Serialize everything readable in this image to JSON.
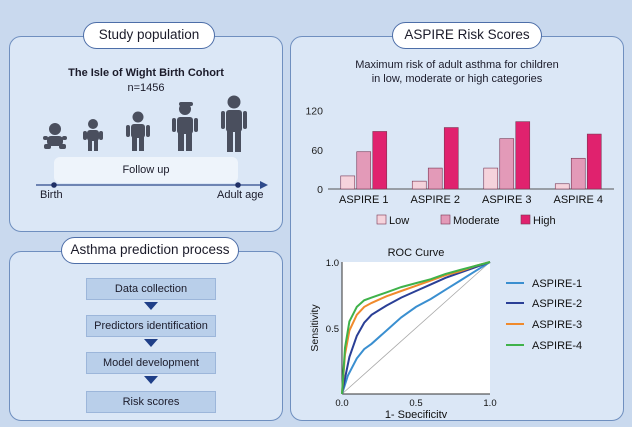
{
  "study": {
    "header": "Study population",
    "cohort": "The Isle of Wight Birth Cohort",
    "n": "n=1456",
    "follow_up": "Follow up",
    "birth": "Birth",
    "adult": "Adult age"
  },
  "process": {
    "header": "Asthma prediction process",
    "steps": [
      "Data collection",
      "Predictors identification",
      "Model development",
      "Risk scores"
    ]
  },
  "aspire": {
    "header": "ASPIRE Risk Scores",
    "subtitle_line1": "Maximum risk of adult asthma for children",
    "subtitle_line2": "in low, moderate or high categories"
  },
  "colors": {
    "low": "#f5d3dc",
    "moderate": "#e39ab8",
    "high": "#e0226e",
    "aspire1": "#3a8fd0",
    "aspire2": "#2a3f96",
    "aspire3": "#f08a2c",
    "aspire4": "#3fb24a"
  },
  "chart_data": [
    {
      "type": "bar",
      "categories": [
        "ASPIRE 1",
        "ASPIRE 2",
        "ASPIRE 3",
        "ASPIRE 4"
      ],
      "series": [
        {
          "name": "Low",
          "values": [
            20,
            12,
            32,
            8
          ]
        },
        {
          "name": "Moderate",
          "values": [
            57,
            32,
            77,
            47
          ]
        },
        {
          "name": "High",
          "values": [
            88,
            94,
            103,
            84
          ]
        }
      ],
      "yticks": [
        "0",
        "60",
        "120"
      ],
      "ylim": [
        0,
        130
      ]
    },
    {
      "type": "line",
      "title": "ROC Curve",
      "xlabel": "1- Specificity",
      "ylabel": "Sensitivity",
      "xticks": [
        "0.0",
        "0.5",
        "1.0"
      ],
      "yticks": [
        "0.5",
        "1.0"
      ],
      "series": [
        {
          "name": "ASPIRE-1",
          "points": [
            [
              0,
              0
            ],
            [
              0.04,
              0.14
            ],
            [
              0.1,
              0.27
            ],
            [
              0.15,
              0.34
            ],
            [
              0.2,
              0.38
            ],
            [
              0.3,
              0.48
            ],
            [
              0.4,
              0.58
            ],
            [
              0.5,
              0.66
            ],
            [
              0.6,
              0.72
            ],
            [
              0.7,
              0.79
            ],
            [
              0.8,
              0.86
            ],
            [
              0.9,
              0.93
            ],
            [
              1,
              1
            ]
          ]
        },
        {
          "name": "ASPIRE-2",
          "points": [
            [
              0,
              0
            ],
            [
              0.02,
              0.12
            ],
            [
              0.05,
              0.28
            ],
            [
              0.1,
              0.44
            ],
            [
              0.15,
              0.54
            ],
            [
              0.2,
              0.6
            ],
            [
              0.3,
              0.67
            ],
            [
              0.4,
              0.73
            ],
            [
              0.5,
              0.78
            ],
            [
              0.6,
              0.83
            ],
            [
              0.7,
              0.88
            ],
            [
              0.8,
              0.92
            ],
            [
              0.9,
              0.96
            ],
            [
              1,
              1
            ]
          ]
        },
        {
          "name": "ASPIRE-3",
          "points": [
            [
              0,
              0
            ],
            [
              0.02,
              0.3
            ],
            [
              0.05,
              0.48
            ],
            [
              0.1,
              0.6
            ],
            [
              0.15,
              0.66
            ],
            [
              0.2,
              0.69
            ],
            [
              0.3,
              0.74
            ],
            [
              0.4,
              0.78
            ],
            [
              0.5,
              0.82
            ],
            [
              0.6,
              0.86
            ],
            [
              0.7,
              0.9
            ],
            [
              0.8,
              0.93
            ],
            [
              0.9,
              0.97
            ],
            [
              1,
              1
            ]
          ]
        },
        {
          "name": "ASPIRE-4",
          "points": [
            [
              0,
              0
            ],
            [
              0.02,
              0.35
            ],
            [
              0.05,
              0.55
            ],
            [
              0.1,
              0.66
            ],
            [
              0.15,
              0.71
            ],
            [
              0.2,
              0.73
            ],
            [
              0.3,
              0.77
            ],
            [
              0.4,
              0.81
            ],
            [
              0.5,
              0.84
            ],
            [
              0.6,
              0.87
            ],
            [
              0.7,
              0.91
            ],
            [
              0.8,
              0.94
            ],
            [
              0.9,
              0.97
            ],
            [
              1,
              1
            ]
          ]
        }
      ]
    }
  ]
}
